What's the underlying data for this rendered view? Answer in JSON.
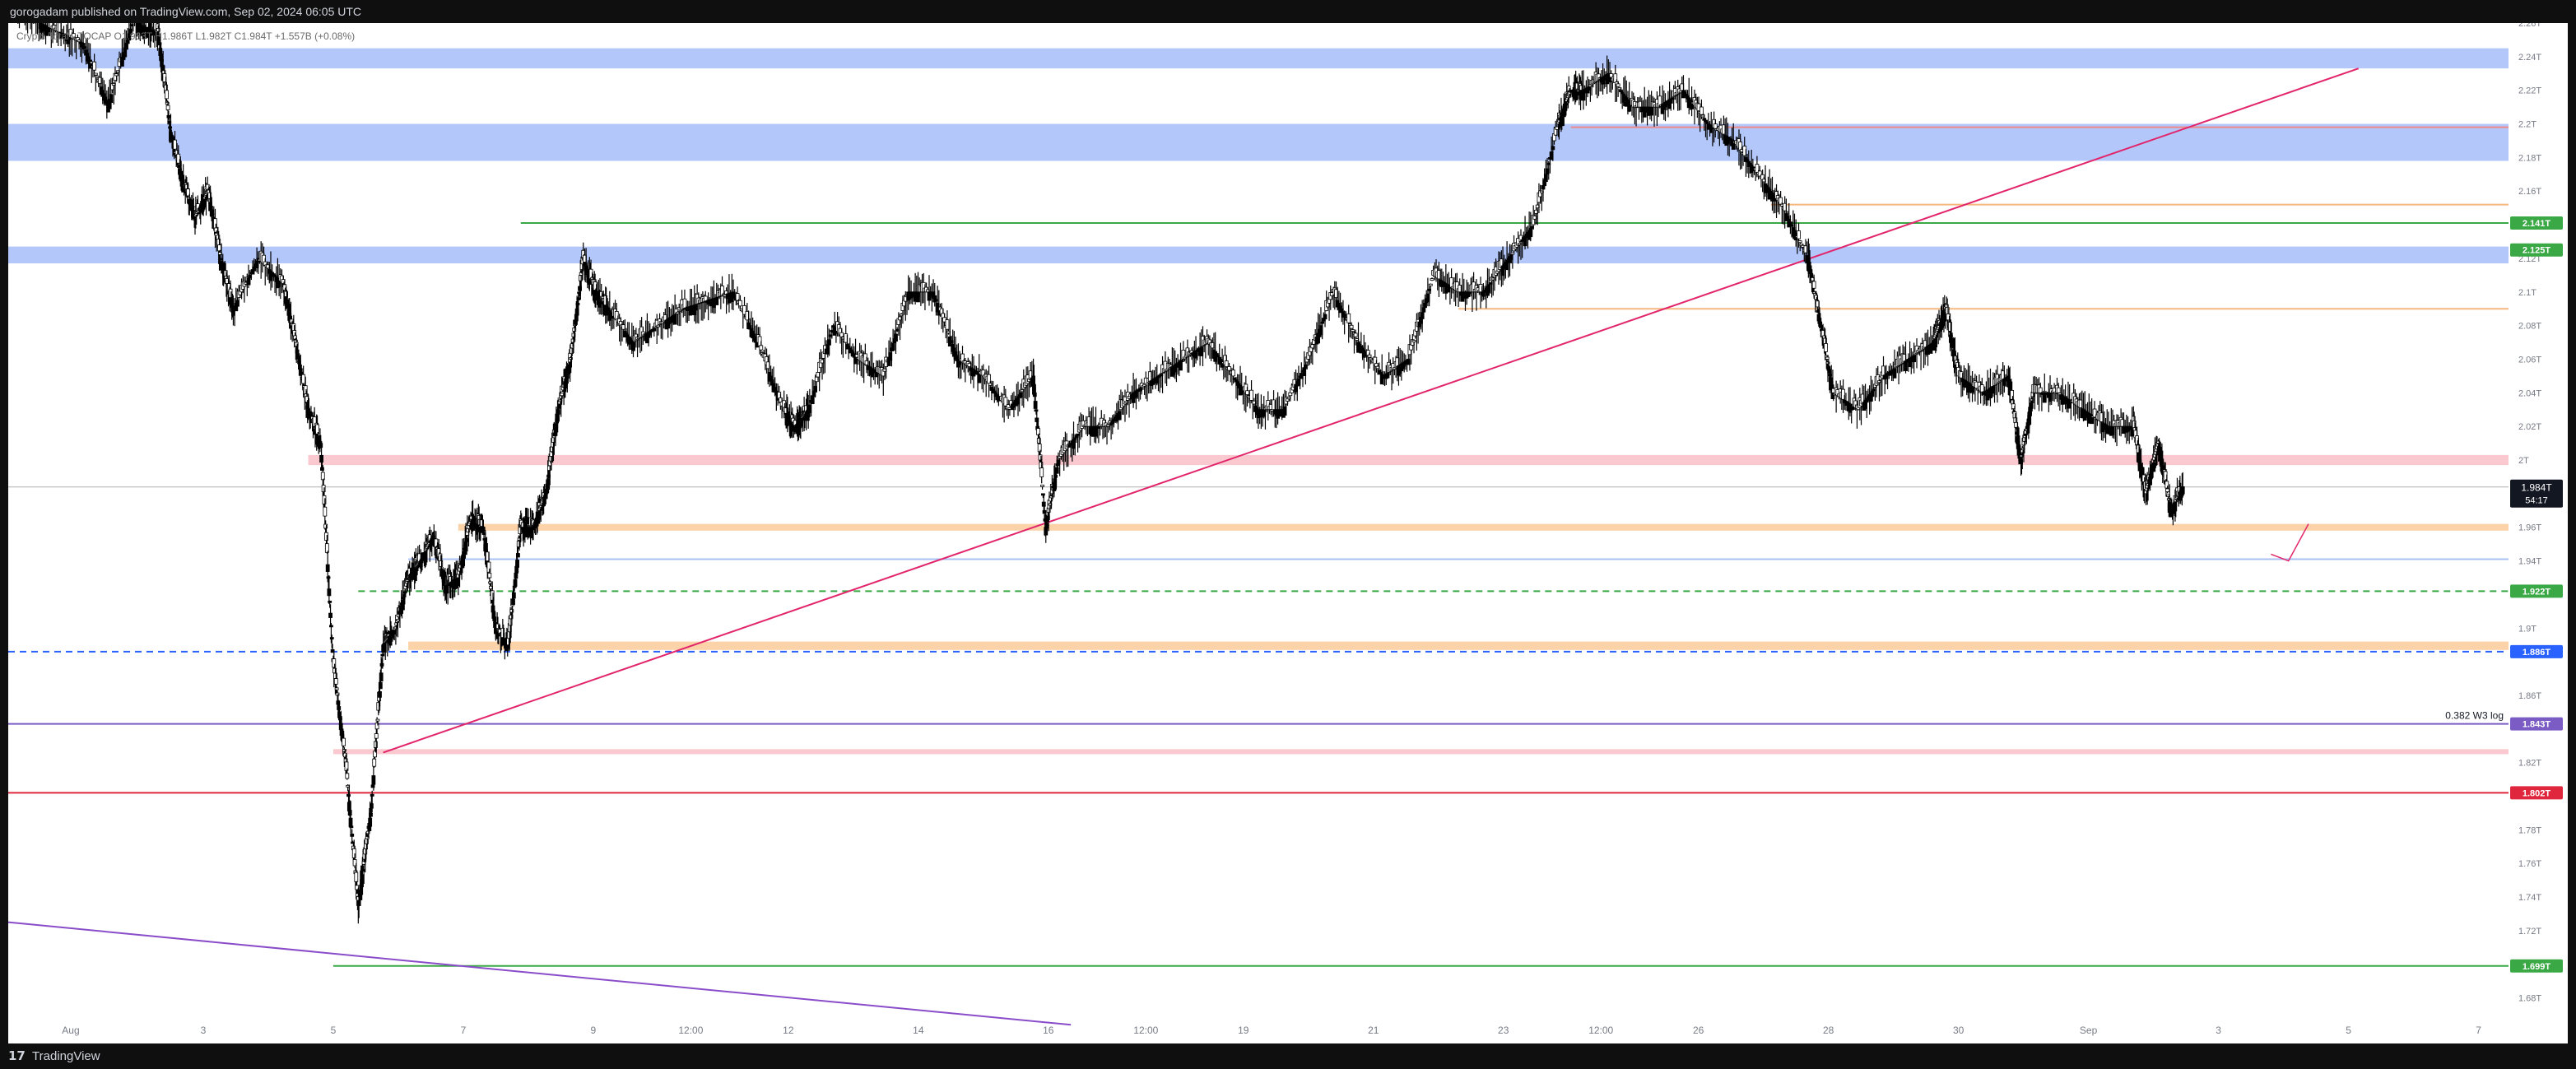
{
  "header": {
    "published_by": "gorogadam published on TradingView.com, Sep 02, 2024 06:05 UTC"
  },
  "legend": {
    "symbol": "Crypto Total",
    "symbol_suffix": "TOCAP",
    "open": "O1.983T",
    "high": "H1.986T",
    "low": "L1.982T",
    "close": "C1.984T",
    "change": "+1.557B (+0.08%)"
  },
  "footer": {
    "brand": "TradingView",
    "logo_glyph": "17"
  },
  "colors": {
    "candle": "#000000",
    "blue_zone": "#b3c7fa",
    "pink_zone": "#f9c9cf",
    "orange_zone": "#fcd2a8",
    "green_line": "#3aa845",
    "blue_dashed": "#2962ff",
    "purple_line": "#7b5cc4",
    "red_line": "#e0263d",
    "magenta_trend": "#e2256b",
    "purple_trend": "#8a4cc9"
  },
  "chart_data": {
    "type": "candlestick",
    "title": "",
    "y_scale": "linear",
    "y_unit": "T",
    "ylim": [
      1.67,
      2.26
    ],
    "y_ticks": [
      "2.26T",
      "2.24T",
      "2.22T",
      "2.2T",
      "2.18T",
      "2.16T",
      "2.12T",
      "2.1T",
      "2.08T",
      "2.06T",
      "2.04T",
      "2.02T",
      "2T",
      "1.96T",
      "1.94T",
      "1.9T",
      "1.86T",
      "1.82T",
      "1.78T",
      "1.76T",
      "1.74T",
      "1.72T",
      "1.68T"
    ],
    "x_ticks": [
      "Aug",
      "3",
      "5",
      "7",
      "9",
      "12:00",
      "12",
      "14",
      "16",
      "12:00",
      "19",
      "21",
      "23",
      "12:00",
      "26",
      "28",
      "30",
      "Sep",
      "3",
      "5",
      "7"
    ],
    "price_labels": [
      {
        "label": "2.141T",
        "value": 2.141,
        "color": "#3aa845"
      },
      {
        "label": "2.125T",
        "value": 2.125,
        "color": "#3aa845"
      },
      {
        "label": "1.922T",
        "value": 1.922,
        "color": "#3aa845"
      },
      {
        "label": "1.886T",
        "value": 1.886,
        "color": "#2962ff"
      },
      {
        "label": "1.843T",
        "value": 1.843,
        "color": "#7b5cc4"
      },
      {
        "label": "1.802T",
        "value": 1.802,
        "color": "#e0263d"
      },
      {
        "label": "1.699T",
        "value": 1.699,
        "color": "#3aa845"
      }
    ],
    "last_price": {
      "label": "1.984T",
      "countdown": "54:17",
      "value": 1.984
    },
    "annotation": {
      "text": "0.382 W3 log",
      "value": 1.843
    },
    "zones": [
      {
        "kind": "blue",
        "from": 2.233,
        "to": 2.245
      },
      {
        "kind": "blue",
        "from": 2.178,
        "to": 2.2
      },
      {
        "kind": "blue",
        "from": 2.117,
        "to": 2.127
      },
      {
        "kind": "pink",
        "from": 1.997,
        "to": 2.003
      },
      {
        "kind": "orange",
        "from": 1.958,
        "to": 1.962
      },
      {
        "kind": "orange",
        "from": 1.887,
        "to": 1.892
      },
      {
        "kind": "pink",
        "from": 1.825,
        "to": 1.828
      }
    ],
    "series": [
      {
        "close_path": [
          [
            0.0,
            2.272
          ],
          [
            0.01,
            2.262
          ],
          [
            0.02,
            2.255
          ],
          [
            0.03,
            2.248
          ],
          [
            0.04,
            2.212
          ],
          [
            0.05,
            2.262
          ],
          [
            0.055,
            2.258
          ],
          [
            0.06,
            2.255
          ],
          [
            0.065,
            2.195
          ],
          [
            0.07,
            2.165
          ],
          [
            0.075,
            2.145
          ],
          [
            0.08,
            2.16
          ],
          [
            0.085,
            2.12
          ],
          [
            0.09,
            2.09
          ],
          [
            0.1,
            2.12
          ],
          [
            0.11,
            2.105
          ],
          [
            0.115,
            2.07
          ],
          [
            0.12,
            2.03
          ],
          [
            0.125,
            2.01
          ],
          [
            0.13,
            1.88
          ],
          [
            0.135,
            1.82
          ],
          [
            0.14,
            1.735
          ],
          [
            0.145,
            1.79
          ],
          [
            0.15,
            1.89
          ],
          [
            0.155,
            1.9
          ],
          [
            0.16,
            1.93
          ],
          [
            0.165,
            1.94
          ],
          [
            0.17,
            1.955
          ],
          [
            0.175,
            1.925
          ],
          [
            0.18,
            1.93
          ],
          [
            0.185,
            1.965
          ],
          [
            0.19,
            1.96
          ],
          [
            0.195,
            1.9
          ],
          [
            0.2,
            1.89
          ],
          [
            0.205,
            1.96
          ],
          [
            0.21,
            1.96
          ],
          [
            0.215,
            1.98
          ],
          [
            0.22,
            2.03
          ],
          [
            0.225,
            2.06
          ],
          [
            0.23,
            2.12
          ],
          [
            0.235,
            2.1
          ],
          [
            0.24,
            2.09
          ],
          [
            0.25,
            2.07
          ],
          [
            0.26,
            2.08
          ],
          [
            0.27,
            2.09
          ],
          [
            0.28,
            2.095
          ],
          [
            0.29,
            2.1
          ],
          [
            0.3,
            2.07
          ],
          [
            0.31,
            2.03
          ],
          [
            0.315,
            2.02
          ],
          [
            0.32,
            2.03
          ],
          [
            0.33,
            2.08
          ],
          [
            0.34,
            2.06
          ],
          [
            0.35,
            2.05
          ],
          [
            0.36,
            2.1
          ],
          [
            0.37,
            2.1
          ],
          [
            0.38,
            2.06
          ],
          [
            0.39,
            2.05
          ],
          [
            0.4,
            2.03
          ],
          [
            0.41,
            2.05
          ],
          [
            0.415,
            1.96
          ],
          [
            0.42,
            2.0
          ],
          [
            0.43,
            2.02
          ],
          [
            0.44,
            2.02
          ],
          [
            0.45,
            2.04
          ],
          [
            0.46,
            2.05
          ],
          [
            0.47,
            2.06
          ],
          [
            0.48,
            2.07
          ],
          [
            0.49,
            2.05
          ],
          [
            0.5,
            2.03
          ],
          [
            0.51,
            2.03
          ],
          [
            0.52,
            2.06
          ],
          [
            0.53,
            2.1
          ],
          [
            0.54,
            2.07
          ],
          [
            0.55,
            2.05
          ],
          [
            0.56,
            2.06
          ],
          [
            0.57,
            2.11
          ],
          [
            0.58,
            2.1
          ],
          [
            0.59,
            2.1
          ],
          [
            0.6,
            2.12
          ],
          [
            0.61,
            2.14
          ],
          [
            0.62,
            2.2
          ],
          [
            0.625,
            2.22
          ],
          [
            0.63,
            2.22
          ],
          [
            0.64,
            2.23
          ],
          [
            0.65,
            2.21
          ],
          [
            0.66,
            2.21
          ],
          [
            0.67,
            2.22
          ],
          [
            0.68,
            2.2
          ],
          [
            0.69,
            2.19
          ],
          [
            0.7,
            2.17
          ],
          [
            0.71,
            2.15
          ],
          [
            0.72,
            2.12
          ],
          [
            0.725,
            2.08
          ],
          [
            0.73,
            2.04
          ],
          [
            0.74,
            2.03
          ],
          [
            0.75,
            2.05
          ],
          [
            0.76,
            2.06
          ],
          [
            0.77,
            2.07
          ],
          [
            0.775,
            2.09
          ],
          [
            0.78,
            2.05
          ],
          [
            0.79,
            2.04
          ],
          [
            0.8,
            2.05
          ],
          [
            0.805,
            2.0
          ],
          [
            0.81,
            2.04
          ],
          [
            0.82,
            2.04
          ],
          [
            0.83,
            2.03
          ],
          [
            0.84,
            2.02
          ],
          [
            0.85,
            2.02
          ],
          [
            0.855,
            1.98
          ],
          [
            0.86,
            2.01
          ],
          [
            0.865,
            1.97
          ],
          [
            0.87,
            1.985
          ]
        ]
      }
    ],
    "levels": [
      {
        "kind": "green",
        "value": 2.141,
        "from": 0.205,
        "style": "solid"
      },
      {
        "kind": "green",
        "value": 1.922,
        "from": 0.14,
        "style": "dashed"
      },
      {
        "kind": "blue",
        "value": 1.886,
        "from": 0.0,
        "style": "dashed"
      },
      {
        "kind": "purple",
        "value": 1.843,
        "from": 0.0,
        "style": "solid"
      },
      {
        "kind": "red",
        "value": 1.802,
        "from": 0.0,
        "style": "solid"
      },
      {
        "kind": "green",
        "value": 1.699,
        "from": 0.13,
        "style": "solid"
      },
      {
        "kind": "gray",
        "value": 1.984,
        "from": 0.0,
        "style": "solid"
      },
      {
        "kind": "lightblue",
        "value": 1.941,
        "from": 0.16,
        "style": "solid"
      },
      {
        "kind": "redthin",
        "value": 2.198,
        "from": 0.625,
        "style": "solid"
      },
      {
        "kind": "orangethin",
        "value": 2.09,
        "from": 0.58,
        "style": "solid"
      },
      {
        "kind": "orangethin",
        "value": 2.152,
        "from": 0.705,
        "style": "solid"
      }
    ]
  }
}
